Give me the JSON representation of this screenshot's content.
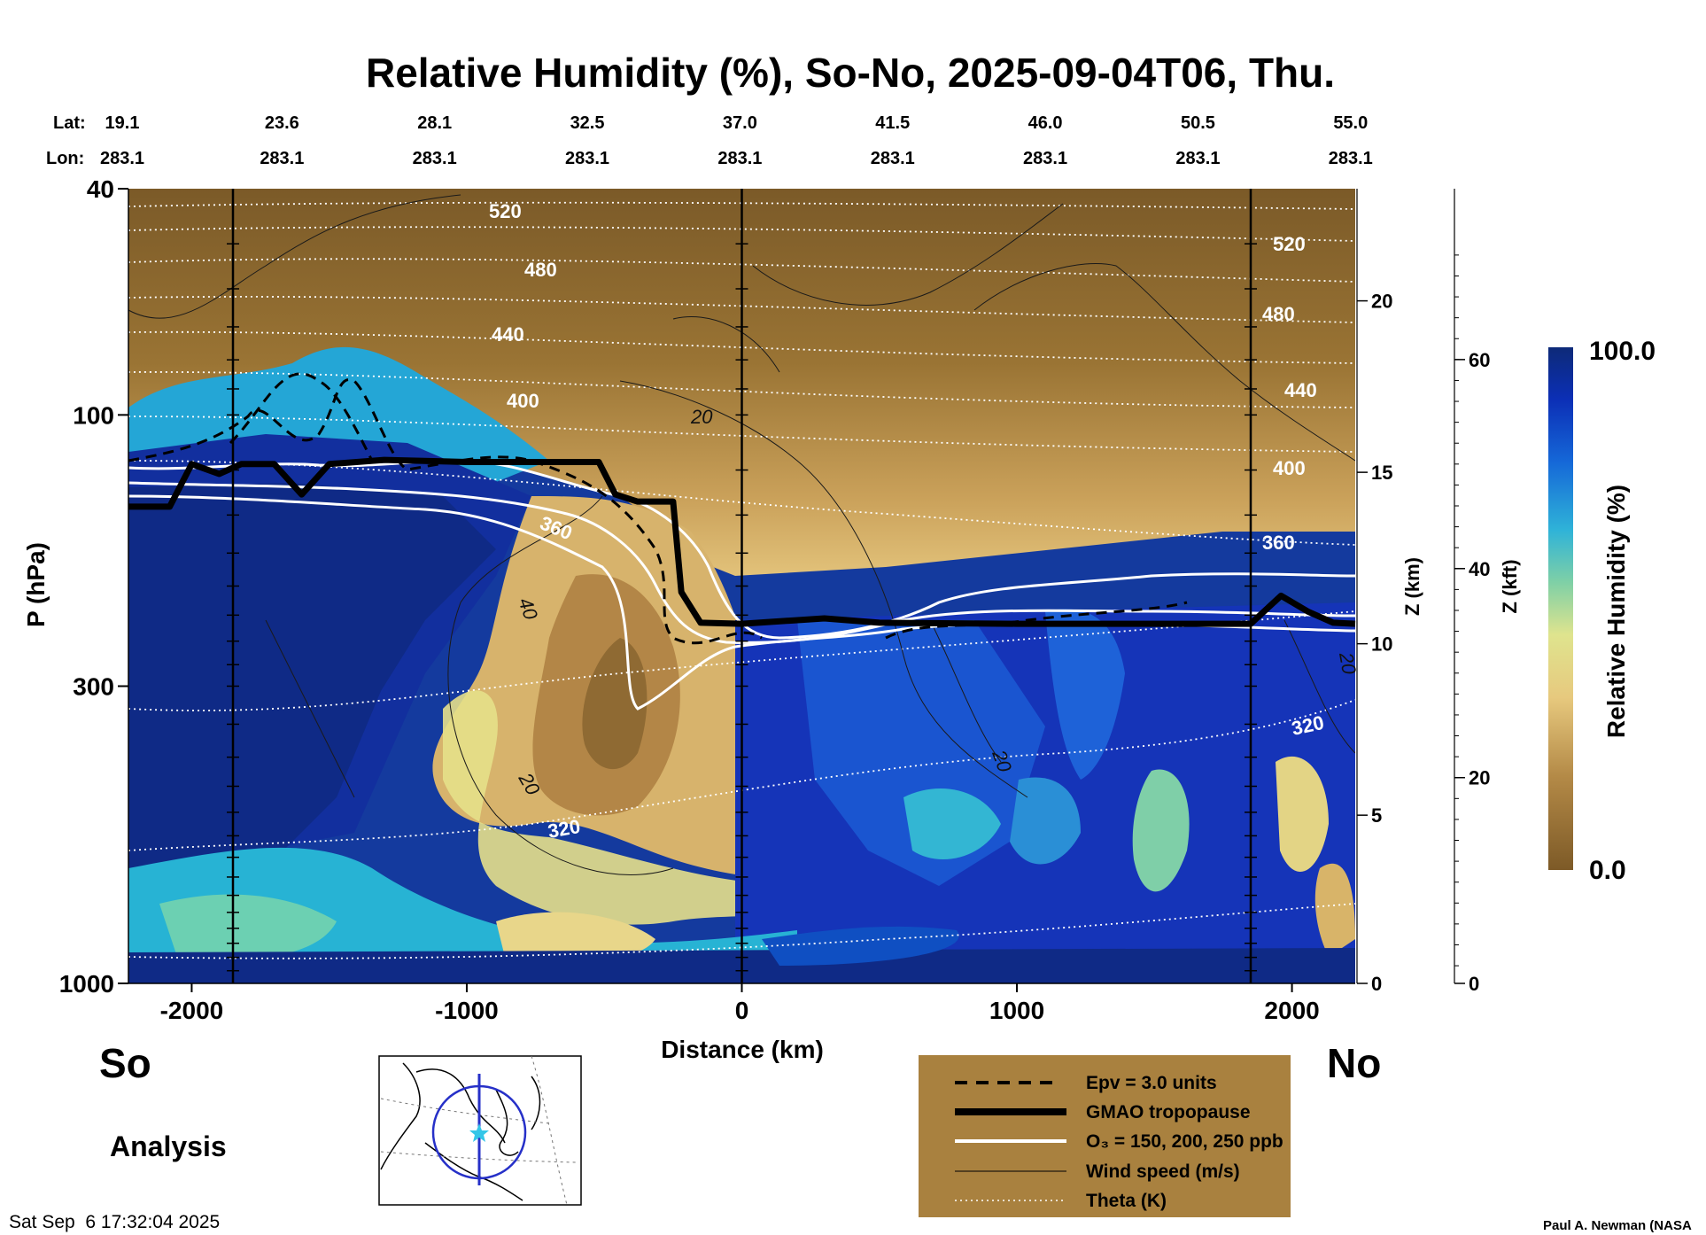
{
  "chart_data": {
    "type": "heatmap",
    "title": "Relative Humidity (%), So-No, 2025-09-04T06, Thu.",
    "xlabel": "Distance (km)",
    "ylabel": "P (hPa)",
    "x_range": [
      -2230,
      2230
    ],
    "x_ticks": [
      -2000,
      -1000,
      0,
      1000,
      2000
    ],
    "y_range_hpa": [
      40,
      1000
    ],
    "y_scale": "log",
    "y_ticks": [
      40,
      100,
      300,
      1000
    ],
    "z_km_label": "Z (km)",
    "z_km_ticks": [
      0,
      5,
      10,
      15,
      20
    ],
    "z_kft_label": "Z (kft)",
    "z_kft_ticks": [
      0,
      20,
      40,
      60
    ],
    "lat_label": "Lat:",
    "lon_label": "Lon:",
    "lat_ticks": [
      "19.1",
      "23.6",
      "28.1",
      "32.5",
      "37.0",
      "41.5",
      "46.0",
      "50.5",
      "55.0"
    ],
    "lon_ticks": [
      "283.1",
      "283.1",
      "283.1",
      "283.1",
      "283.1",
      "283.1",
      "283.1",
      "283.1",
      "283.1"
    ],
    "end_labels": {
      "south": "So",
      "north": "No"
    },
    "colorbar": {
      "label": "Relative Humidity (%)",
      "max": "100.0",
      "min": "0.0"
    },
    "theta_labels": [
      "520",
      "480",
      "440",
      "400",
      "360",
      "320",
      "520",
      "480",
      "440",
      "400",
      "360",
      "320"
    ],
    "wind_labels": [
      "20",
      "40",
      "20",
      "20",
      "20"
    ],
    "vertical_lines_km": [
      -1850,
      0,
      1850
    ],
    "tropopause_km_hpa": [
      [
        -2230,
        145
      ],
      [
        -2080,
        145
      ],
      [
        -2000,
        122
      ],
      [
        -1900,
        127
      ],
      [
        -1820,
        122
      ],
      [
        -1700,
        122
      ],
      [
        -1600,
        138
      ],
      [
        -1500,
        122
      ],
      [
        -1300,
        120
      ],
      [
        -1000,
        121
      ],
      [
        -520,
        121
      ],
      [
        -460,
        138
      ],
      [
        -380,
        142
      ],
      [
        -250,
        142
      ],
      [
        -220,
        205
      ],
      [
        -150,
        232
      ],
      [
        0,
        233
      ],
      [
        300,
        228
      ],
      [
        500,
        232
      ],
      [
        1000,
        233
      ],
      [
        1500,
        233
      ],
      [
        1850,
        233
      ],
      [
        1960,
        208
      ],
      [
        2060,
        222
      ],
      [
        2150,
        232
      ],
      [
        2230,
        233
      ]
    ],
    "rh_bands": [
      {
        "region": "stratosphere, above ~150 hPa",
        "rh_percent": "0-20"
      },
      {
        "region": "south tropical troposphere",
        "rh_percent": "80-100"
      },
      {
        "region": "dry intrusion near -800 to -200 km, 250-600 hPa",
        "rh_percent": "0-30"
      },
      {
        "region": "north troposphere below 240 hPa",
        "rh_percent": "70-100"
      }
    ]
  },
  "legend": {
    "items": [
      "Epv = 3.0 units",
      "GMAO tropopause",
      "O₃ = 150, 200, 250 ppb",
      "Wind speed (m/s)",
      "Theta (K)"
    ]
  },
  "footer": {
    "analysis": "Analysis",
    "timestamp": "Sat Sep  6 17:32:04 2025",
    "credit": "Paul A. Newman (NASA"
  },
  "colors": {
    "accent_dark": "#0d2a78",
    "brown_dark": "#7d5a27",
    "legend_bg": "#a9813f"
  }
}
